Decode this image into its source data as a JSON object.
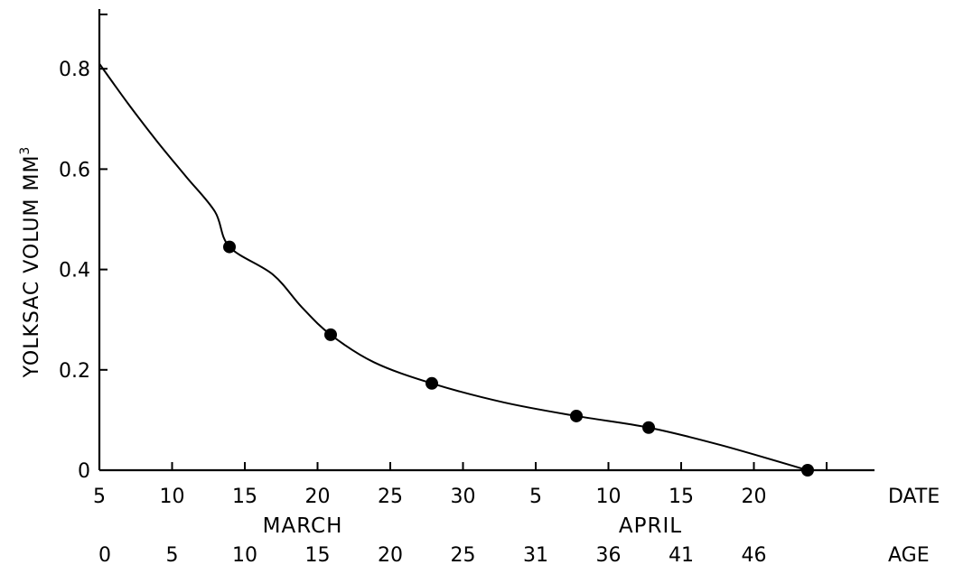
{
  "chart_data": {
    "type": "line",
    "ylabel": "YOLKSAC VOLUM MM",
    "ylabel_superscript": "3",
    "ylim": [
      0,
      0.9
    ],
    "y_ticks": [
      "0",
      "0.2",
      "0.4",
      "0.6",
      "0.8"
    ],
    "x_axis_rows": {
      "date": {
        "label": "DATE",
        "ticks": [
          "5",
          "10",
          "15",
          "20",
          "25",
          "30",
          "5",
          "10",
          "15",
          "20"
        ]
      },
      "months": [
        "MARCH",
        "APRIL"
      ],
      "age": {
        "label": "AGE",
        "ticks": [
          "0",
          "5",
          "10",
          "15",
          "20",
          "25",
          "31",
          "36",
          "41",
          "46"
        ]
      }
    },
    "xlim_age_days": [
      0,
      58
    ],
    "series": [
      {
        "curve": [
          {
            "x": 0,
            "y": 0.81
          },
          {
            "x": 2,
            "y": 0.73
          },
          {
            "x": 4,
            "y": 0.655
          },
          {
            "x": 6,
            "y": 0.585
          },
          {
            "x": 8,
            "y": 0.515
          },
          {
            "x": 9,
            "y": 0.445
          },
          {
            "x": 12,
            "y": 0.39
          },
          {
            "x": 14,
            "y": 0.325
          },
          {
            "x": 16,
            "y": 0.27
          },
          {
            "x": 19,
            "y": 0.215
          },
          {
            "x": 23,
            "y": 0.173
          },
          {
            "x": 28,
            "y": 0.135
          },
          {
            "x": 33,
            "y": 0.108
          },
          {
            "x": 38,
            "y": 0.085
          },
          {
            "x": 43,
            "y": 0.05
          },
          {
            "x": 49,
            "y": 0.0
          }
        ],
        "points": [
          {
            "x": 9,
            "y": 0.445
          },
          {
            "x": 16,
            "y": 0.27
          },
          {
            "x": 23,
            "y": 0.173
          },
          {
            "x": 33,
            "y": 0.108
          },
          {
            "x": 38,
            "y": 0.085
          },
          {
            "x": 49,
            "y": 0.0
          }
        ]
      }
    ],
    "grid": false,
    "legend": "none"
  }
}
